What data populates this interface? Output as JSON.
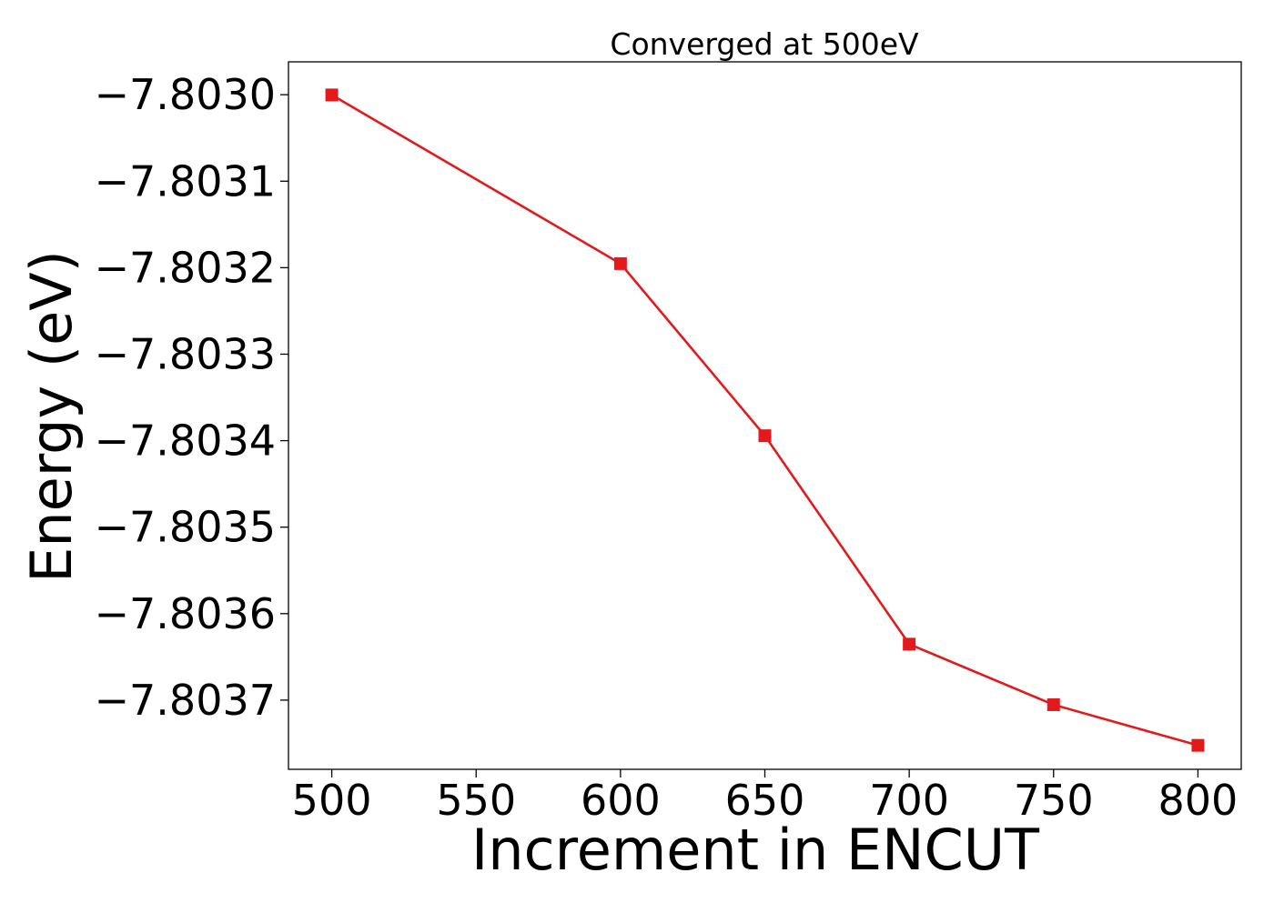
{
  "chart_data": {
    "type": "line",
    "title": "Converged at 500eV",
    "xlabel": "Increment in ENCUT",
    "ylabel": "Energy (eV)",
    "xlim": [
      485,
      815
    ],
    "ylim": [
      -7.80378,
      -7.802962
    ],
    "xticks": [
      500,
      550,
      600,
      650,
      700,
      750,
      800
    ],
    "yticks": [
      -7.803,
      -7.8031,
      -7.8032,
      -7.8033,
      -7.8034,
      -7.8035,
      -7.8036,
      -7.8037
    ],
    "ytick_labels": [
      "−7.8030",
      "−7.8031",
      "−7.8032",
      "−7.8033",
      "−7.8034",
      "−7.8035",
      "−7.8036",
      "−7.8037"
    ],
    "grid": false,
    "series": [
      {
        "color": "#e31a1c",
        "marker": "square",
        "x": [
          500,
          600,
          650,
          700,
          750,
          800
        ],
        "y": [
          -7.8030003,
          -7.8031953,
          -7.8033943,
          -7.8036353,
          -7.8037053,
          -7.8037523
        ]
      }
    ]
  }
}
